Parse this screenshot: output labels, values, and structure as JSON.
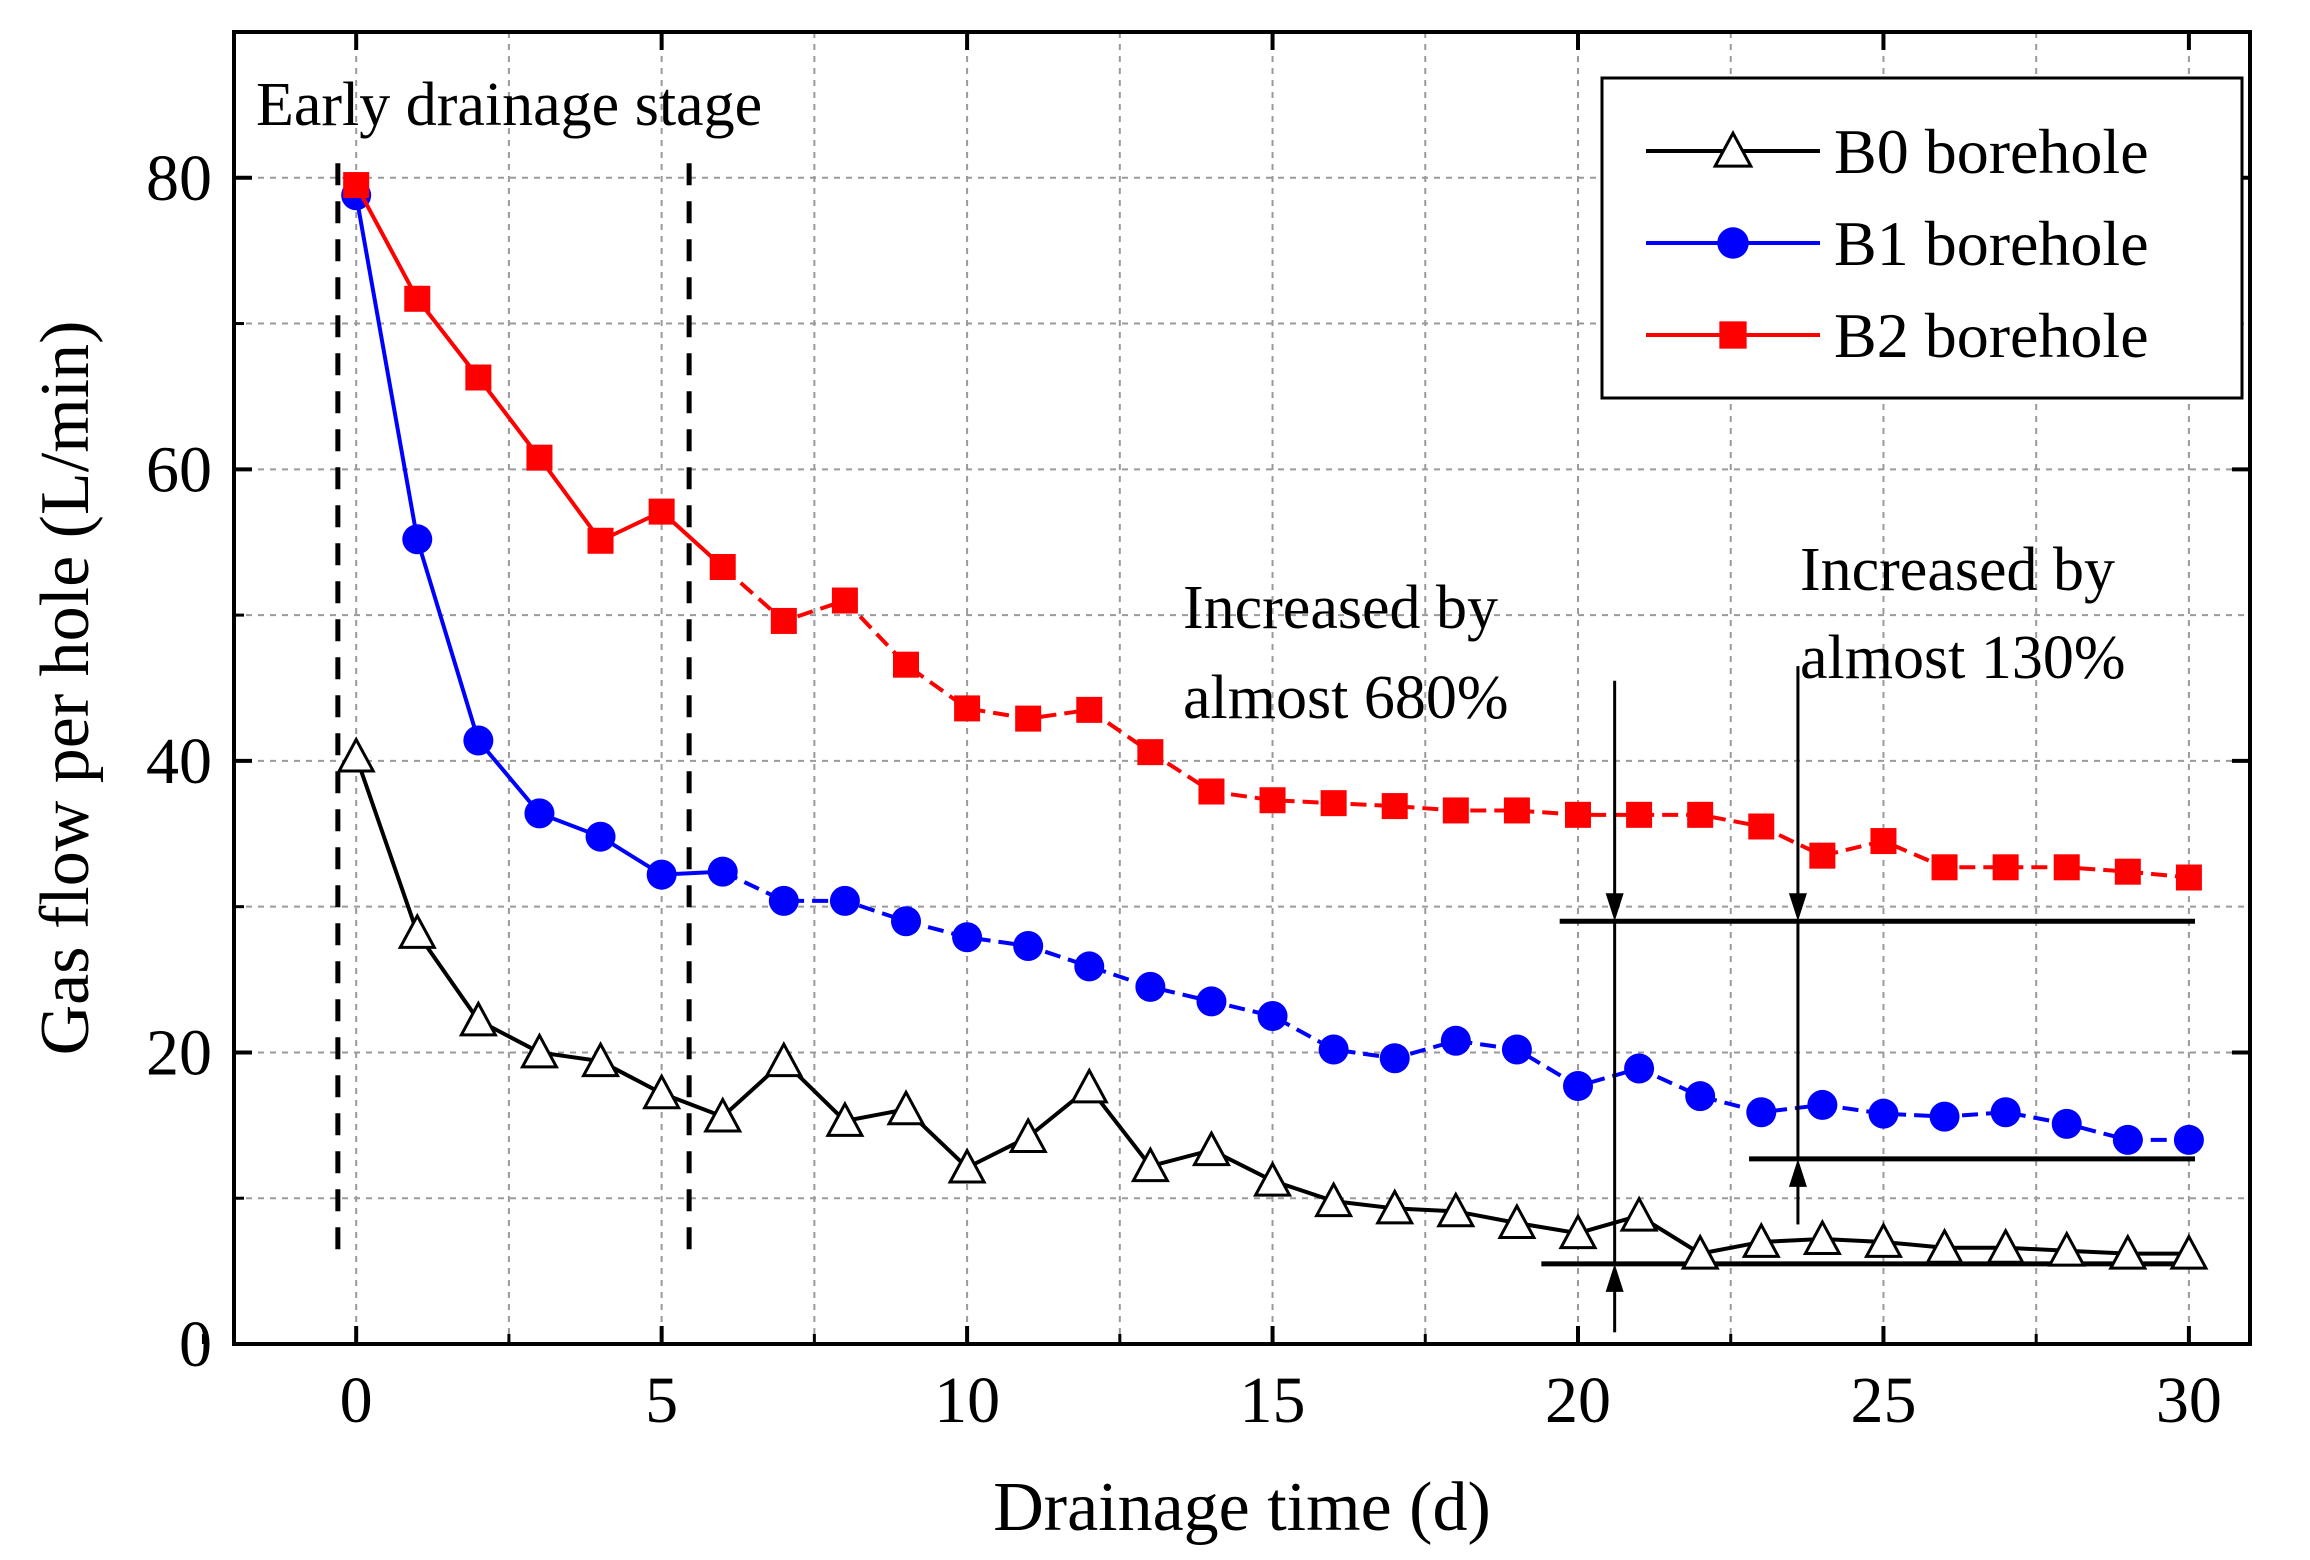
{
  "chart_data": {
    "type": "line",
    "title": "",
    "xlabel": "Drainage time (d)",
    "ylabel": "Gas flow per hole (L/min)",
    "xlim": [
      -2,
      31
    ],
    "ylim": [
      0,
      90
    ],
    "x_ticks": [
      0,
      5,
      10,
      15,
      20,
      25,
      30
    ],
    "y_ticks": [
      0,
      20,
      40,
      60,
      80
    ],
    "x_tick_labels": [
      "0",
      "5",
      "10",
      "15",
      "20",
      "25",
      "30"
    ],
    "y_tick_labels": [
      "0",
      "20",
      "40",
      "60",
      "80"
    ],
    "grid": true,
    "legend_position": "top-right",
    "x": [
      0,
      1,
      2,
      3,
      4,
      5,
      6,
      7,
      8,
      9,
      10,
      11,
      12,
      13,
      14,
      15,
      16,
      17,
      18,
      19,
      20,
      21,
      22,
      23,
      24,
      25,
      26,
      27,
      28,
      29,
      30
    ],
    "series": [
      {
        "name": "B0 borehole",
        "color": "#000000",
        "marker": "triangle-open",
        "values": [
          40.3,
          28.2,
          22.2,
          20.0,
          19.4,
          17.2,
          15.6,
          19.4,
          15.3,
          16.1,
          12.1,
          14.2,
          17.6,
          12.2,
          13.3,
          11.2,
          9.8,
          9.3,
          9.1,
          8.3,
          7.6,
          8.8,
          6.2,
          7.0,
          7.2,
          7.0,
          6.6,
          6.6,
          6.4,
          6.2,
          6.2
        ]
      },
      {
        "name": "B1 borehole",
        "color": "#0000ff",
        "marker": "circle",
        "values": [
          78.8,
          55.2,
          41.4,
          36.4,
          34.8,
          32.2,
          32.4,
          30.4,
          30.4,
          29.0,
          27.9,
          27.3,
          25.9,
          24.5,
          23.5,
          22.5,
          20.2,
          19.6,
          20.8,
          20.2,
          17.7,
          18.9,
          17.0,
          15.9,
          16.4,
          15.8,
          15.6,
          15.9,
          15.1,
          14.0,
          14.0
        ]
      },
      {
        "name": "B2 borehole",
        "color": "#ff0000",
        "marker": "square",
        "values": [
          79.5,
          71.7,
          66.3,
          60.8,
          55.1,
          57.1,
          53.3,
          49.6,
          51.0,
          46.6,
          43.6,
          42.9,
          43.5,
          40.6,
          37.9,
          37.3,
          37.1,
          36.9,
          36.6,
          36.6,
          36.3,
          36.3,
          36.3,
          35.5,
          33.5,
          34.5,
          32.7,
          32.7,
          32.7,
          32.4,
          32.0
        ]
      }
    ],
    "annotations": {
      "early_stage": "Early drainage stage",
      "stage_bounds_x": [
        -0.3,
        5.45
      ],
      "ann1": {
        "line1": "Increased by",
        "line2": "almost 680%",
        "arrow_x": 20.6,
        "from_level": 5.5,
        "to_level": 29.0
      },
      "ann2": {
        "line1": "Increased by",
        "line2": "almost 130%",
        "arrow_x": 23.6,
        "from_level": 12.7,
        "to_level": 29.0
      }
    }
  }
}
